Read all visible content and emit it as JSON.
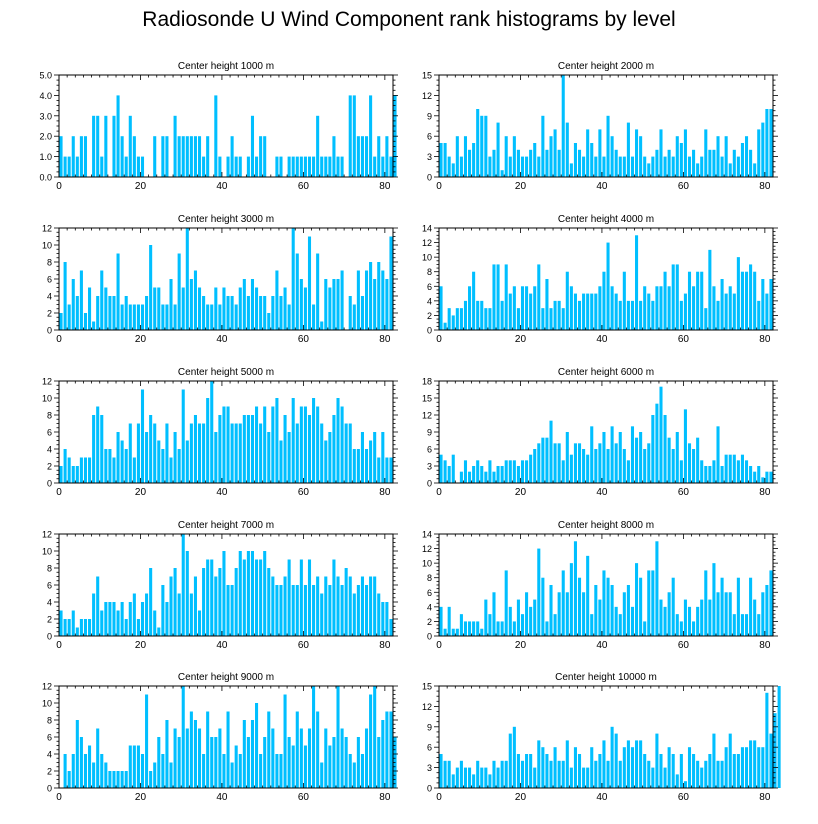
{
  "title": "Radiosonde U Wind Component rank histograms by level",
  "bar_color": "#00BFFF",
  "chart_data": [
    {
      "type": "bar",
      "title": "Center height 1000 m",
      "xlim": [
        0,
        82
      ],
      "ylim": [
        0,
        5
      ],
      "xticks": [
        0,
        20,
        40,
        60,
        80
      ],
      "yticks": [
        0,
        1,
        2,
        3,
        4,
        5
      ],
      "ytick_labels": [
        "0.0",
        "1.0",
        "2.0",
        "3.0",
        "4.0",
        "5.0"
      ],
      "values": [
        2,
        1,
        1,
        2,
        1,
        2,
        2,
        0,
        3,
        3,
        1,
        3,
        0,
        3,
        4,
        2,
        1,
        3,
        2,
        1,
        1,
        0,
        0,
        2,
        0,
        2,
        2,
        0,
        3,
        2,
        2,
        2,
        2,
        2,
        2,
        1,
        2,
        0,
        4,
        1,
        0,
        1,
        2,
        1,
        1,
        0,
        1,
        3,
        1,
        2,
        2,
        0,
        0,
        1,
        1,
        0,
        1,
        1,
        1,
        1,
        1,
        1,
        1,
        3,
        1,
        1,
        1,
        2,
        1,
        1,
        0,
        4,
        4,
        2,
        2,
        2,
        4,
        1,
        2,
        1,
        2,
        1,
        4
      ]
    },
    {
      "type": "bar",
      "title": "Center height 2000 m",
      "xlim": [
        0,
        82
      ],
      "ylim": [
        0,
        15
      ],
      "xticks": [
        0,
        20,
        40,
        60,
        80
      ],
      "yticks": [
        0,
        3,
        6,
        9,
        12,
        15
      ],
      "ytick_labels": [
        "0",
        "3",
        "6",
        "9",
        "12",
        "15"
      ],
      "values": [
        5,
        5,
        3,
        2,
        6,
        3,
        6,
        4,
        5,
        10,
        9,
        9,
        3,
        4,
        8,
        1,
        6,
        3,
        6,
        4,
        3,
        3,
        4,
        5,
        3,
        9,
        4,
        6,
        7,
        4,
        15,
        8,
        2,
        5,
        4,
        3,
        7,
        5,
        3,
        7,
        3,
        9,
        6,
        4,
        3,
        3,
        8,
        3,
        7,
        6,
        3,
        2,
        3,
        4,
        7,
        3,
        4,
        3,
        6,
        5,
        7,
        3,
        4,
        2,
        3,
        7,
        4,
        4,
        6,
        3,
        6,
        2,
        4,
        3,
        5,
        6,
        4,
        2,
        7,
        8,
        10,
        10
      ]
    },
    {
      "type": "bar",
      "title": "Center height 3000 m",
      "xlim": [
        0,
        82
      ],
      "ylim": [
        0,
        12
      ],
      "xticks": [
        0,
        20,
        40,
        60,
        80
      ],
      "yticks": [
        0,
        2,
        4,
        6,
        8,
        10,
        12
      ],
      "ytick_labels": [
        "0",
        "2",
        "4",
        "6",
        "8",
        "10",
        "12"
      ],
      "values": [
        2,
        8,
        3,
        6,
        4,
        7,
        2,
        5,
        1,
        4,
        7,
        5,
        4,
        4,
        9,
        3,
        4,
        3,
        3,
        3,
        3,
        4,
        10,
        5,
        5,
        3,
        3,
        6,
        3,
        9,
        5,
        12,
        6,
        7,
        5,
        4,
        3,
        3,
        5,
        3,
        5,
        4,
        4,
        3,
        5,
        6,
        4,
        6,
        5,
        4,
        4,
        2,
        4,
        7,
        4,
        5,
        3,
        12,
        9,
        6,
        5,
        11,
        3,
        9,
        1,
        6,
        5,
        6,
        6,
        7,
        0,
        4,
        3,
        7,
        4,
        7,
        8,
        6,
        8,
        7,
        6,
        11
      ]
    },
    {
      "type": "bar",
      "title": "Center height 4000 m",
      "xlim": [
        0,
        82
      ],
      "ylim": [
        0,
        14
      ],
      "xticks": [
        0,
        20,
        40,
        60,
        80
      ],
      "yticks": [
        0,
        2,
        4,
        6,
        8,
        10,
        12,
        14
      ],
      "ytick_labels": [
        "0",
        "2",
        "4",
        "6",
        "8",
        "10",
        "12",
        "14"
      ],
      "values": [
        6,
        1,
        3,
        2,
        3,
        3,
        4,
        6,
        8,
        4,
        4,
        3,
        3,
        9,
        9,
        4,
        9,
        5,
        6,
        3,
        6,
        6,
        5,
        6,
        9,
        3,
        7,
        3,
        4,
        4,
        3,
        8,
        6,
        5,
        4,
        5,
        5,
        5,
        5,
        6,
        8,
        12,
        6,
        5,
        4,
        8,
        4,
        4,
        13,
        4,
        6,
        5,
        4,
        6,
        6,
        8,
        6,
        9,
        9,
        4,
        5,
        8,
        6,
        8,
        8,
        3,
        11,
        6,
        4,
        7,
        5,
        6,
        5,
        10,
        8,
        8,
        9,
        8,
        4,
        7,
        5,
        7
      ]
    },
    {
      "type": "bar",
      "title": "Center height 5000 m",
      "xlim": [
        0,
        82
      ],
      "ylim": [
        0,
        12
      ],
      "xticks": [
        0,
        20,
        40,
        60,
        80
      ],
      "yticks": [
        0,
        2,
        4,
        6,
        8,
        10,
        12
      ],
      "ytick_labels": [
        "0",
        "2",
        "4",
        "6",
        "8",
        "10",
        "12"
      ],
      "values": [
        2,
        4,
        3,
        2,
        2,
        3,
        3,
        3,
        8,
        9,
        8,
        4,
        4,
        3,
        6,
        5,
        4,
        7,
        3,
        7,
        11,
        6,
        8,
        7,
        5,
        4,
        7,
        3,
        6,
        4,
        11,
        5,
        7,
        8,
        7,
        7,
        10,
        12,
        6,
        8,
        9,
        9,
        7,
        7,
        7,
        8,
        8,
        8,
        9,
        7,
        9,
        6,
        9,
        10,
        5,
        8,
        6,
        10,
        7,
        9,
        9,
        8,
        10,
        9,
        7,
        5,
        6,
        8,
        10,
        9,
        7,
        7,
        4,
        4,
        6,
        4,
        5,
        6,
        3,
        6,
        3,
        3
      ]
    },
    {
      "type": "bar",
      "title": "Center height 6000 m",
      "xlim": [
        0,
        82
      ],
      "ylim": [
        0,
        18
      ],
      "xticks": [
        0,
        20,
        40,
        60,
        80
      ],
      "yticks": [
        0,
        3,
        6,
        9,
        12,
        15,
        18
      ],
      "ytick_labels": [
        "0",
        "3",
        "6",
        "9",
        "12",
        "15",
        "18"
      ],
      "values": [
        5,
        4,
        3,
        5,
        0,
        2,
        4,
        2,
        3,
        4,
        3,
        2,
        4,
        2,
        3,
        3,
        4,
        4,
        4,
        3,
        4,
        4,
        5,
        6,
        7,
        8,
        8,
        11,
        7,
        7,
        4,
        9,
        5,
        7,
        7,
        6,
        5,
        10,
        6,
        7,
        9,
        6,
        10,
        7,
        9,
        6,
        4,
        10,
        8,
        9,
        6,
        7,
        12,
        14,
        17,
        12,
        8,
        6,
        9,
        4,
        13,
        7,
        6,
        8,
        4,
        3,
        3,
        4,
        10,
        3,
        5,
        5,
        5,
        4,
        5,
        4,
        3,
        2,
        3,
        1,
        2,
        2
      ]
    },
    {
      "type": "bar",
      "title": "Center height 7000 m",
      "xlim": [
        0,
        82
      ],
      "ylim": [
        0,
        12
      ],
      "xticks": [
        0,
        20,
        40,
        60,
        80
      ],
      "yticks": [
        0,
        2,
        4,
        6,
        8,
        10,
        12
      ],
      "ytick_labels": [
        "0",
        "2",
        "4",
        "6",
        "8",
        "10",
        "12"
      ],
      "values": [
        3,
        2,
        2,
        3,
        1,
        2,
        2,
        2,
        5,
        7,
        3,
        4,
        4,
        4,
        3,
        4,
        2,
        4,
        5,
        2,
        4,
        5,
        8,
        3,
        1,
        6,
        4,
        7,
        8,
        5,
        12,
        10,
        5,
        7,
        3,
        8,
        9,
        9,
        7,
        8,
        10,
        6,
        6,
        8,
        10,
        9,
        10,
        10,
        9,
        9,
        10,
        8,
        7,
        6,
        6,
        7,
        9,
        6,
        6,
        9,
        6,
        9,
        6,
        7,
        5,
        7,
        6,
        9,
        7,
        6,
        8,
        7,
        5,
        6,
        7,
        6,
        7,
        7,
        5,
        4,
        4,
        2
      ]
    },
    {
      "type": "bar",
      "title": "Center height 8000 m",
      "xlim": [
        0,
        82
      ],
      "ylim": [
        0,
        14
      ],
      "xticks": [
        0,
        20,
        40,
        60,
        80
      ],
      "yticks": [
        0,
        2,
        4,
        6,
        8,
        10,
        12,
        14
      ],
      "ytick_labels": [
        "0",
        "2",
        "4",
        "6",
        "8",
        "10",
        "12",
        "14"
      ],
      "values": [
        4,
        1,
        4,
        1,
        1,
        3,
        2,
        2,
        2,
        2,
        1,
        5,
        3,
        6,
        2,
        2,
        9,
        4,
        2,
        5,
        3,
        6,
        4,
        5,
        12,
        8,
        2,
        7,
        3,
        6,
        9,
        6,
        10,
        13,
        8,
        6,
        11,
        3,
        7,
        5,
        9,
        8,
        7,
        4,
        3,
        6,
        7,
        4,
        10,
        8,
        2,
        9,
        9,
        13,
        5,
        4,
        6,
        8,
        3,
        2,
        5,
        4,
        2,
        4,
        5,
        9,
        5,
        10,
        6,
        8,
        6,
        6,
        3,
        8,
        3,
        3,
        8,
        5,
        3,
        6,
        7,
        9
      ]
    },
    {
      "type": "bar",
      "title": "Center height 9000 m",
      "xlim": [
        0,
        82
      ],
      "ylim": [
        0,
        12
      ],
      "xticks": [
        0,
        20,
        40,
        60,
        80
      ],
      "yticks": [
        0,
        2,
        4,
        6,
        8,
        10,
        12
      ],
      "ytick_labels": [
        "0",
        "2",
        "4",
        "6",
        "8",
        "10",
        "12"
      ],
      "values": [
        0,
        4,
        2,
        4,
        8,
        6,
        4,
        5,
        3,
        7,
        4,
        3,
        2,
        2,
        2,
        2,
        2,
        5,
        5,
        5,
        4,
        11,
        2,
        3,
        6,
        4,
        8,
        3,
        7,
        6,
        12,
        7,
        9,
        8,
        7,
        4,
        9,
        6,
        6,
        7,
        4,
        9,
        3,
        5,
        4,
        8,
        6,
        8,
        10,
        4,
        6,
        9,
        7,
        4,
        4,
        11,
        6,
        5,
        9,
        7,
        5,
        7,
        12,
        9,
        3,
        7,
        5,
        6,
        12,
        7,
        6,
        4,
        3,
        6,
        4,
        7,
        11,
        12,
        6,
        8,
        9,
        9,
        6
      ]
    },
    {
      "type": "bar",
      "title": "Center height 10000 m",
      "xlim": [
        0,
        82
      ],
      "ylim": [
        0,
        15
      ],
      "xticks": [
        0,
        20,
        40,
        60,
        80
      ],
      "yticks": [
        0,
        3,
        6,
        9,
        12,
        15
      ],
      "ytick_labels": [
        "0",
        "3",
        "6",
        "9",
        "12",
        "15"
      ],
      "values": [
        5,
        4,
        4,
        2,
        3,
        4,
        3,
        3,
        2,
        4,
        3,
        3,
        2,
        4,
        3,
        4,
        4,
        8,
        9,
        5,
        4,
        5,
        5,
        3,
        7,
        6,
        5,
        4,
        6,
        4,
        4,
        7,
        3,
        6,
        5,
        3,
        3,
        6,
        4,
        5,
        7,
        4,
        9,
        8,
        4,
        6,
        7,
        6,
        7,
        7,
        5,
        4,
        3,
        8,
        5,
        3,
        6,
        5,
        2,
        5,
        1,
        6,
        5,
        4,
        3,
        4,
        5,
        8,
        4,
        4,
        6,
        8,
        5,
        5,
        6,
        6,
        7,
        7,
        6,
        6,
        14,
        8,
        11,
        15
      ]
    }
  ]
}
